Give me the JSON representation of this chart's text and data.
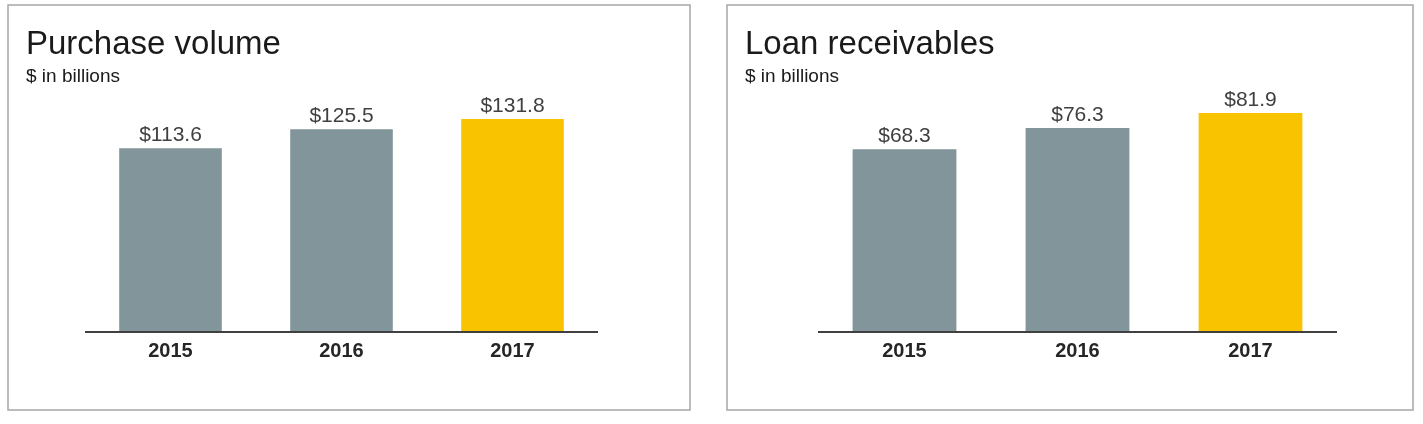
{
  "chart_data": [
    {
      "type": "bar",
      "title": "Purchase volume",
      "subtitle": "$ in billions",
      "categories": [
        "2015",
        "2016",
        "2017"
      ],
      "values": [
        113.6,
        125.5,
        131.8
      ],
      "colors": [
        "#82959a",
        "#82959a",
        "#f9c300"
      ],
      "value_labels": [
        "$113.6",
        "$125.5",
        "$131.8"
      ],
      "tick_labels": "x"
    },
    {
      "type": "bar",
      "title": "Loan receivables",
      "subtitle": "$ in billions",
      "categories": [
        "2015",
        "2016",
        "2017"
      ],
      "values": [
        68.3,
        76.3,
        81.9
      ],
      "colors": [
        "#82959a",
        "#82959a",
        "#f9c300"
      ],
      "value_labels": [
        "$68.3",
        "$76.3",
        "$81.9"
      ],
      "tick_labels": "x"
    }
  ]
}
